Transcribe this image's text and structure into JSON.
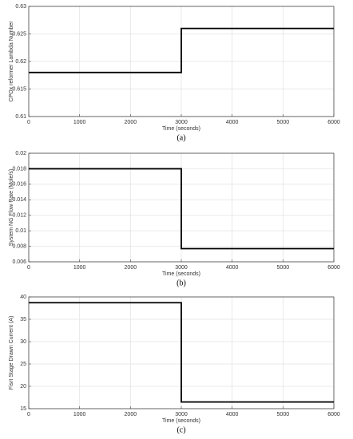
{
  "chart_data": [
    {
      "type": "line",
      "y_label": "CPOx reformer Lambda Number",
      "x_label": "Time (seconds)",
      "caption": "(a)",
      "x": [
        0,
        3000,
        3000,
        6000
      ],
      "values": [
        0.618,
        0.618,
        0.626,
        0.626
      ],
      "color": "#000000",
      "xlim": [
        0,
        6000
      ],
      "xticks": [
        0,
        1000,
        2000,
        3000,
        4000,
        5000,
        6000
      ],
      "ylim": [
        0.61,
        0.63
      ],
      "yticks": [
        0.61,
        0.615,
        0.62,
        0.625,
        0.63
      ],
      "grid": true
    },
    {
      "type": "line",
      "y_label": "System NG Flow Rate (Mole/s)",
      "x_label": "Time (seconds)",
      "caption": "(b)",
      "x": [
        0,
        3000,
        3000,
        6000
      ],
      "values": [
        0.018,
        0.018,
        0.0077,
        0.0077
      ],
      "color": "#000000",
      "xlim": [
        0,
        6000
      ],
      "xticks": [
        0,
        1000,
        2000,
        3000,
        4000,
        5000,
        6000
      ],
      "ylim": [
        0.006,
        0.02
      ],
      "yticks": [
        0.006,
        0.008,
        0.01,
        0.012,
        0.014,
        0.016,
        0.018,
        0.02
      ],
      "grid": true
    },
    {
      "type": "line",
      "y_label": "Fisrt Stage Drawn Current (A)",
      "x_label": "Time (seconds)",
      "caption": "(c)",
      "x": [
        0,
        3000,
        3000,
        6000
      ],
      "values": [
        38.7,
        38.7,
        16.5,
        16.5
      ],
      "color": "#000000",
      "xlim": [
        0,
        6000
      ],
      "xticks": [
        0,
        1000,
        2000,
        3000,
        4000,
        5000,
        6000
      ],
      "ylim": [
        15,
        40
      ],
      "yticks": [
        15,
        20,
        25,
        30,
        35,
        40
      ],
      "grid": true
    }
  ]
}
